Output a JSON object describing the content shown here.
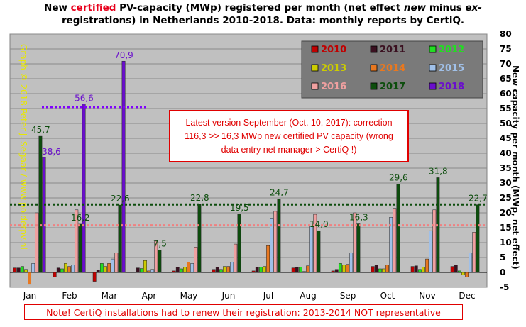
{
  "title": {
    "part1": "New ",
    "part2": "certified",
    "part3": " PV-capacity (MWp) registered per month (net effect ",
    "part4": "new",
    "part5": " minus ",
    "part6": "ex-",
    "line2": "registrations) in Netherlands 2010-2018. Data: monthly reports by CertiQ."
  },
  "ylabel_right": "New capacity per month (MWp, net effect)",
  "watermark": "Graph © 2018 Peter J. Segaar / www.polderpv.nl",
  "annotation": {
    "line1": "Latest version September (Oct. 10, 2017): correction",
    "line2": "116,3 >> 16,3 MWp new certified PV capacity (wrong",
    "line3": "data entry net manager > CertiQ !)"
  },
  "footer_note": "Note! CertiQ installations had to renew their registration: 2013-2014 NOT representative",
  "chart_data": {
    "type": "bar",
    "categories": [
      "Jan",
      "Feb",
      "Mar",
      "Apr",
      "May",
      "Jun",
      "Jul",
      "Aug",
      "Sep",
      "Oct",
      "Nov",
      "Dec"
    ],
    "ylim": [
      -5,
      80
    ],
    "yticks": [
      -5,
      0,
      5,
      10,
      15,
      20,
      25,
      30,
      35,
      40,
      45,
      50,
      55,
      60,
      65,
      70,
      75,
      80
    ],
    "grid": true,
    "legend_position": "top-right",
    "series": [
      {
        "name": "2010",
        "color": "#c00000",
        "values": [
          1.5,
          -1.5,
          -3,
          null,
          0.5,
          1,
          0.5,
          1.5,
          0.5,
          2,
          2,
          2
        ]
      },
      {
        "name": "2011",
        "color": "#3a1020",
        "values": [
          1.5,
          1.5,
          0.8,
          1.5,
          1.8,
          1.8,
          1.8,
          1.8,
          1,
          2.5,
          2.2,
          2.5
        ]
      },
      {
        "name": "2012",
        "color": "#22dd22",
        "values": [
          2,
          1.2,
          3,
          1.3,
          1.2,
          1,
          1.8,
          1.8,
          3,
          1.2,
          1,
          0.5
        ]
      },
      {
        "name": "2013",
        "color": "#cccc00",
        "values": [
          1,
          3,
          2,
          4,
          1.8,
          2,
          2,
          0.3,
          2.5,
          1.2,
          1.8,
          -0.8
        ]
      },
      {
        "name": "2014",
        "color": "#e87820",
        "values": [
          -4,
          2,
          3,
          0.5,
          3.5,
          2,
          9,
          2.2,
          2.7,
          2.5,
          4.5,
          -1.5
        ]
      },
      {
        "name": "2015",
        "color": "#a0c0e8",
        "values": [
          3,
          2.5,
          4.5,
          1,
          3,
          3.5,
          18,
          15.5,
          6.5,
          18.5,
          14,
          6.5
        ]
      },
      {
        "name": "2016",
        "color": "#f0a0a0",
        "values": [
          20,
          21,
          6.5,
          10.5,
          8.5,
          9.5,
          20.5,
          19.5,
          20,
          21.5,
          21,
          13.5
        ]
      },
      {
        "name": "2017",
        "color": "#0d4d0d",
        "values": [
          45.7,
          16.2,
          22.6,
          7.5,
          22.8,
          19.5,
          24.7,
          14.0,
          16.3,
          29.6,
          31.8,
          22.7
        ]
      },
      {
        "name": "2018",
        "color": "#6a0fcc",
        "values": [
          38.6,
          56.6,
          70.9,
          null,
          null,
          null,
          null,
          null,
          null,
          null,
          null,
          null
        ]
      }
    ],
    "data_labels": {
      "2017": [
        "45,7",
        "16,2",
        "22,6",
        "7,5",
        "22,8",
        "19,5",
        "24,7",
        "14,0",
        "16,3",
        "29,6",
        "31,8",
        "22,7"
      ],
      "2018": [
        "38,6",
        "56,6",
        "70,9"
      ]
    },
    "reference_lines": [
      {
        "value": 55.5,
        "color": "#8000ff",
        "style": "dotted"
      },
      {
        "value": 22.8,
        "color": "#0d4d0d",
        "style": "dotted"
      },
      {
        "value": 15.8,
        "color": "#f08080",
        "style": "dotted"
      }
    ]
  }
}
